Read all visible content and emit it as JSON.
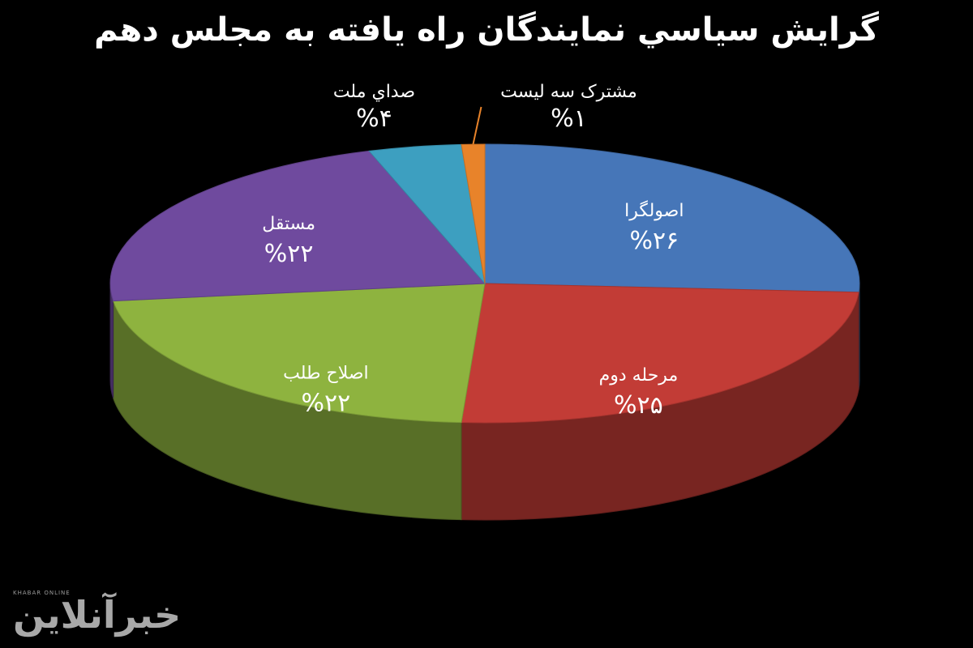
{
  "chart_data": {
    "type": "pie",
    "title": "گرايش سياسي نمايندگان راه يافته به مجلس دهم",
    "slices": [
      {
        "label": "اصولگرا",
        "value_label": "%۲۶",
        "value": 26,
        "color": "#4676b8"
      },
      {
        "label": "مرحله دوم",
        "value_label": "%۲۵",
        "value": 25,
        "color": "#c23c36"
      },
      {
        "label": "اصلاح طلب",
        "value_label": "%۲۲",
        "value": 22,
        "color": "#8eb33f"
      },
      {
        "label": "مستقل",
        "value_label": "%۲۲",
        "value": 22,
        "color": "#6f4a9e"
      },
      {
        "label": "صداي ملت",
        "value_label": "%۴",
        "value": 4,
        "color": "#3d9fc0"
      },
      {
        "label": "مشترک سه ليست",
        "value_label": "%۱",
        "value": 1,
        "color": "#e8832a"
      }
    ]
  },
  "watermark": {
    "brand_en": "KHABAR ONLINE",
    "logo": "خبرآنلاین"
  }
}
